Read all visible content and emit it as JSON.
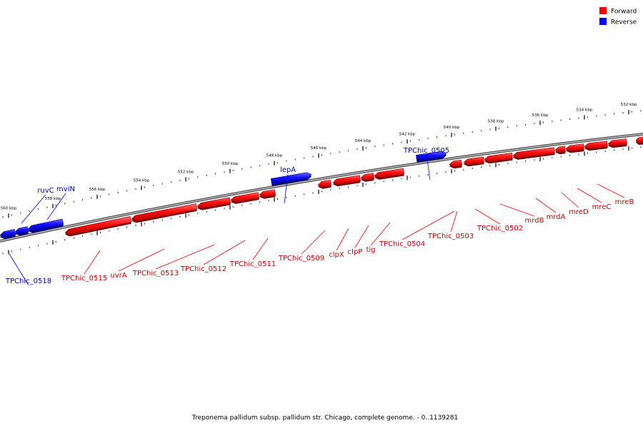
{
  "legend": {
    "items": [
      {
        "label": "Forward",
        "color": "#ff0000"
      },
      {
        "label": "Reverse",
        "color": "#0000ff"
      }
    ]
  },
  "caption": "Treponema pallidum subsp. pallidum str. Chicago, complete genome. - 0..1139281",
  "colors": {
    "forward": "#ff0000",
    "forward_label": "#cc0000",
    "reverse": "#0000ff",
    "reverse_label": "#0000bb",
    "backbone": "#808080"
  },
  "ticks": [
    "560 kbp",
    "558 kbp",
    "556 kbp",
    "554 kbp",
    "552 kbp",
    "550 kbp",
    "548 kbp",
    "546 kbp",
    "544 kbp",
    "542 kbp",
    "540 kbp",
    "538 kbp",
    "536 kbp",
    "534 kbp",
    "532 kbp"
  ],
  "genes": [
    {
      "name": "ruvC",
      "strand": "reverse",
      "label": "ruvC"
    },
    {
      "name": "mviN",
      "strand": "reverse",
      "label": "mviN"
    },
    {
      "name": "TPChic_0518",
      "strand": "reverse",
      "label": "TPChic_0518"
    },
    {
      "name": "lepA",
      "strand": "reverse",
      "label": "lepA"
    },
    {
      "name": "TPChic_0505",
      "strand": "reverse",
      "label": "TPChic_0505"
    },
    {
      "name": "TPChic_0515",
      "strand": "forward",
      "label": "TPChic_0515"
    },
    {
      "name": "uvrA",
      "strand": "forward",
      "label": "uvrA"
    },
    {
      "name": "TPChic_0513",
      "strand": "forward",
      "label": "TPChic_0513"
    },
    {
      "name": "TPChic_0512",
      "strand": "forward",
      "label": "TPChic_0512"
    },
    {
      "name": "TPChic_0511",
      "strand": "forward",
      "label": "TPChic_0511"
    },
    {
      "name": "TPChic_0509",
      "strand": "forward",
      "label": "TPChic_0509"
    },
    {
      "name": "clpX",
      "strand": "forward",
      "label": "clpX"
    },
    {
      "name": "clpP",
      "strand": "forward",
      "label": "clpP"
    },
    {
      "name": "tig",
      "strand": "forward",
      "label": "tig"
    },
    {
      "name": "TPChic_0504",
      "strand": "forward",
      "label": "TPChic_0504"
    },
    {
      "name": "TPChic_0503",
      "strand": "forward",
      "label": "TPChic_0503"
    },
    {
      "name": "TPChic_0502",
      "strand": "forward",
      "label": "TPChic_0502"
    },
    {
      "name": "mrdB",
      "strand": "forward",
      "label": "mrdB"
    },
    {
      "name": "mrdA",
      "strand": "forward",
      "label": "mrdA"
    },
    {
      "name": "mreD",
      "strand": "forward",
      "label": "mreD"
    },
    {
      "name": "mreC",
      "strand": "forward",
      "label": "mreC"
    },
    {
      "name": "mreB",
      "strand": "forward",
      "label": "mreB"
    }
  ]
}
